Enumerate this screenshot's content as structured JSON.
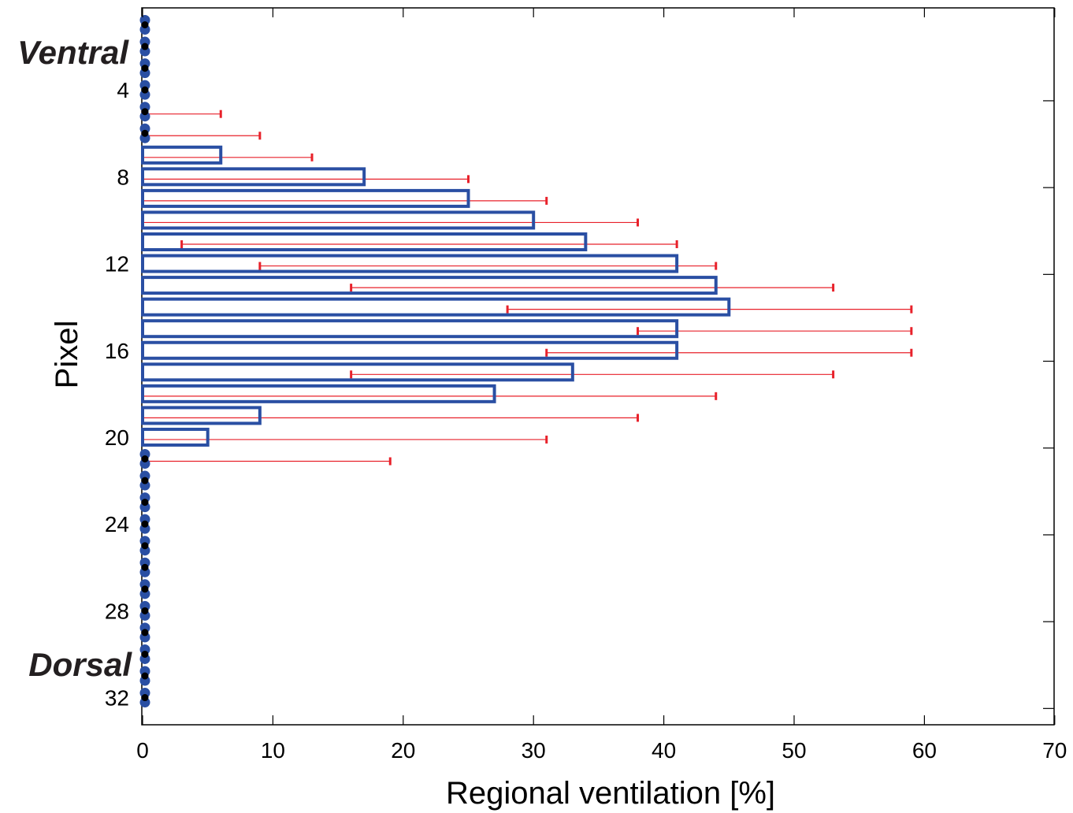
{
  "chart_data": {
    "type": "bar",
    "orientation": "horizontal",
    "xlabel": "Regional ventilation [%]",
    "ylabel": "Pixel",
    "xlim": [
      0,
      70
    ],
    "ylim": [
      1,
      32
    ],
    "x_ticks": [
      "0",
      "10",
      "20",
      "30",
      "40",
      "50",
      "60",
      "70"
    ],
    "y_ticks": [
      "4",
      "8",
      "12",
      "16",
      "20",
      "24",
      "28",
      "32"
    ],
    "annotations": {
      "top": "Ventral",
      "bottom": "Dorsal"
    },
    "grid": false,
    "colors": {
      "bar": "#2a4fa3",
      "error": "#e8212a",
      "zero_marker_center": "#000000"
    },
    "pixels": [
      1,
      2,
      3,
      4,
      5,
      6,
      7,
      8,
      9,
      10,
      11,
      12,
      13,
      14,
      15,
      16,
      17,
      18,
      19,
      20,
      21,
      22,
      23,
      24,
      25,
      26,
      27,
      28,
      29,
      30,
      31,
      32
    ],
    "values": [
      0,
      0,
      0,
      0,
      0,
      0,
      6,
      17,
      25,
      30,
      34,
      41,
      44,
      45,
      41,
      41,
      33,
      27,
      9,
      5,
      0,
      0,
      0,
      0,
      0,
      0,
      0,
      0,
      0,
      0,
      0,
      0
    ],
    "error_low": [
      0,
      0,
      0,
      0,
      0,
      0,
      0,
      0,
      0,
      0,
      3,
      9,
      16,
      28,
      38,
      31,
      16,
      0,
      0,
      0,
      0,
      0,
      0,
      0,
      0,
      0,
      0,
      0,
      0,
      0,
      0,
      0
    ],
    "error_high": [
      0,
      0,
      0,
      0,
      6,
      9,
      13,
      25,
      31,
      38,
      41,
      44,
      53,
      59,
      59,
      59,
      53,
      44,
      38,
      31,
      19,
      0,
      0,
      0,
      0,
      0,
      0,
      0,
      0,
      0,
      0,
      0
    ]
  }
}
